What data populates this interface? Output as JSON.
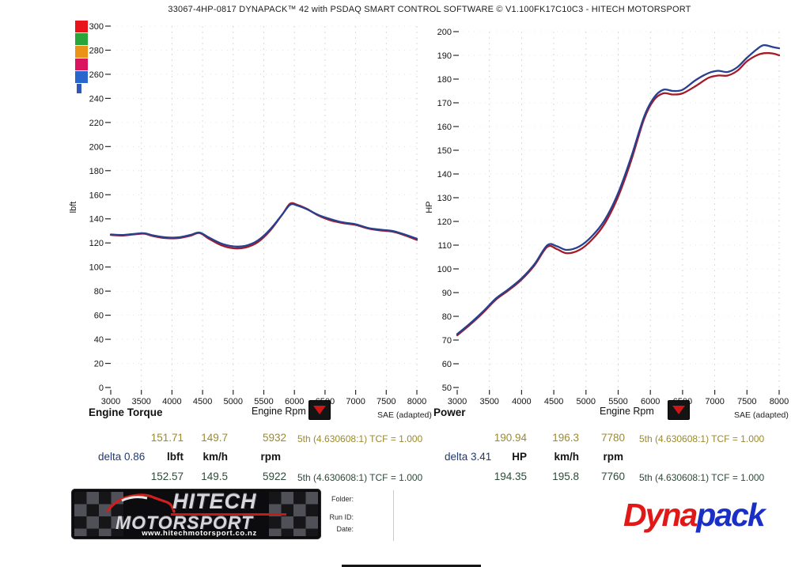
{
  "title": "33067-4HP-0817 DYNAPACK™ 42 with PSDAQ SMART CONTROL SOFTWARE © V1.100FK17C10C3 - HITECH MOTORSPORT",
  "legend": {
    "swatches": [
      "#e8131b",
      "#28a63c",
      "#ea9317",
      "#d9155f",
      "#2766cc"
    ],
    "tail": "#2d58b8"
  },
  "colors": {
    "run_blue": "#27408f",
    "run_red": "#a51a28",
    "grid": "#c7c7c7",
    "row_top_text": "#9a8a2f",
    "row_bottom_text": "#2e4a3a",
    "delta_text": "#1f3a78"
  },
  "chart_data": [
    {
      "type": "line",
      "title": "Engine Torque",
      "xlabel": "Engine Rpm",
      "ylabel": "lbft",
      "note": "SAE (adapted)",
      "xlim": [
        3000,
        8000
      ],
      "ylim": [
        0,
        300
      ],
      "xtick_step": 500,
      "ytick_step": 20,
      "grid": true,
      "legend_position": "none",
      "x": [
        3000,
        3200,
        3400,
        3550,
        3700,
        3900,
        4100,
        4300,
        4450,
        4600,
        4800,
        5000,
        5200,
        5400,
        5600,
        5800,
        5930,
        6050,
        6200,
        6400,
        6600,
        6800,
        7000,
        7200,
        7400,
        7600,
        7800,
        8000
      ],
      "series": [
        {
          "name": "run-blue",
          "color": "#27408f",
          "values": [
            127,
            126.6,
            127.6,
            128,
            126.2,
            124.6,
            124.6,
            126.6,
            128.6,
            124.6,
            119.6,
            117.2,
            117.6,
            122,
            131,
            143.5,
            151.7,
            151,
            148,
            143,
            139.6,
            137,
            135.5,
            132.5,
            131,
            130,
            127,
            123.5
          ]
        },
        {
          "name": "run-red",
          "color": "#a51a28",
          "values": [
            126.6,
            126.2,
            127.2,
            127.6,
            125.6,
            124,
            124,
            126,
            128.2,
            123.6,
            118.2,
            115.6,
            116.2,
            120.6,
            130,
            143.5,
            152.6,
            151.5,
            148.4,
            142.5,
            138.6,
            136.4,
            135,
            132,
            130.4,
            129.4,
            126.4,
            122.5
          ]
        }
      ]
    },
    {
      "type": "line",
      "title": "Power",
      "xlabel": "Engine Rpm",
      "ylabel": "HP",
      "note": "SAE (adapted)",
      "xlim": [
        3000,
        8000
      ],
      "ylim": [
        50,
        200
      ],
      "xtick_step": 500,
      "ytick_step": 10,
      "grid": true,
      "legend_position": "none",
      "x": [
        3000,
        3200,
        3400,
        3600,
        3800,
        4000,
        4200,
        4400,
        4550,
        4700,
        4900,
        5100,
        5300,
        5500,
        5700,
        5900,
        6050,
        6200,
        6350,
        6500,
        6700,
        6900,
        7050,
        7200,
        7350,
        7500,
        7650,
        7760,
        7900,
        8000
      ],
      "series": [
        {
          "name": "run-blue",
          "color": "#27408f",
          "values": [
            72.5,
            77,
            82,
            87.5,
            91.5,
            96,
            102,
            110,
            109.5,
            108,
            109.5,
            114,
            121,
            132,
            147,
            164,
            172,
            175.5,
            175,
            175.5,
            179.5,
            182.5,
            183.5,
            183,
            185,
            189,
            192.5,
            194.3,
            193.5,
            193
          ]
        },
        {
          "name": "run-red",
          "color": "#a51a28",
          "values": [
            72,
            76.5,
            81.5,
            87,
            91,
            95.5,
            101.5,
            109.3,
            108.3,
            106.6,
            108,
            112.5,
            119.5,
            130.5,
            145.5,
            163,
            171,
            174,
            173.5,
            174,
            177,
            180.5,
            181.5,
            181.5,
            183.5,
            187.5,
            190,
            190.9,
            190.8,
            190
          ]
        }
      ]
    }
  ],
  "captions": {
    "torque": {
      "heading": "Engine Torque",
      "xlabel": "Engine Rpm",
      "note": "SAE (adapted)"
    },
    "power": {
      "heading": "Power",
      "xlabel": "Engine Rpm",
      "note": "SAE (adapted)"
    }
  },
  "tables": {
    "torque": {
      "row_top": {
        "v1": "151.71",
        "v2": "149.7",
        "v3": "5932",
        "gear": "5th (4.630608:1) TCF = 1.000"
      },
      "delta": "delta 0.86",
      "units": {
        "u1": "lbft",
        "u2": "km/h",
        "u3": "rpm"
      },
      "row_bottom": {
        "v1": "152.57",
        "v2": "149.5",
        "v3": "5922",
        "gear": "5th (4.630608:1) TCF = 1.000"
      }
    },
    "power": {
      "row_top": {
        "v1": "190.94",
        "v2": "196.3",
        "v3": "7780",
        "gear": "5th (4.630608:1) TCF = 1.000"
      },
      "delta": "delta 3.41",
      "units": {
        "u1": "HP",
        "u2": "km/h",
        "u3": "rpm"
      },
      "row_bottom": {
        "v1": "194.35",
        "v2": "195.8",
        "v3": "7760",
        "gear": "5th (4.630608:1) TCF = 1.000"
      }
    }
  },
  "footer": {
    "hitech": {
      "line1": "HITECH",
      "line2": "MOTORSPORT",
      "url": "www.hitechmotorsport.co.nz"
    },
    "fields": {
      "folder": "Folder:",
      "run_id": "Run ID:",
      "date": "Date:"
    },
    "dynapack": {
      "part1": "Dyna",
      "part2": "pack",
      "color1": "#e01818",
      "color2": "#1a2fc4"
    }
  }
}
